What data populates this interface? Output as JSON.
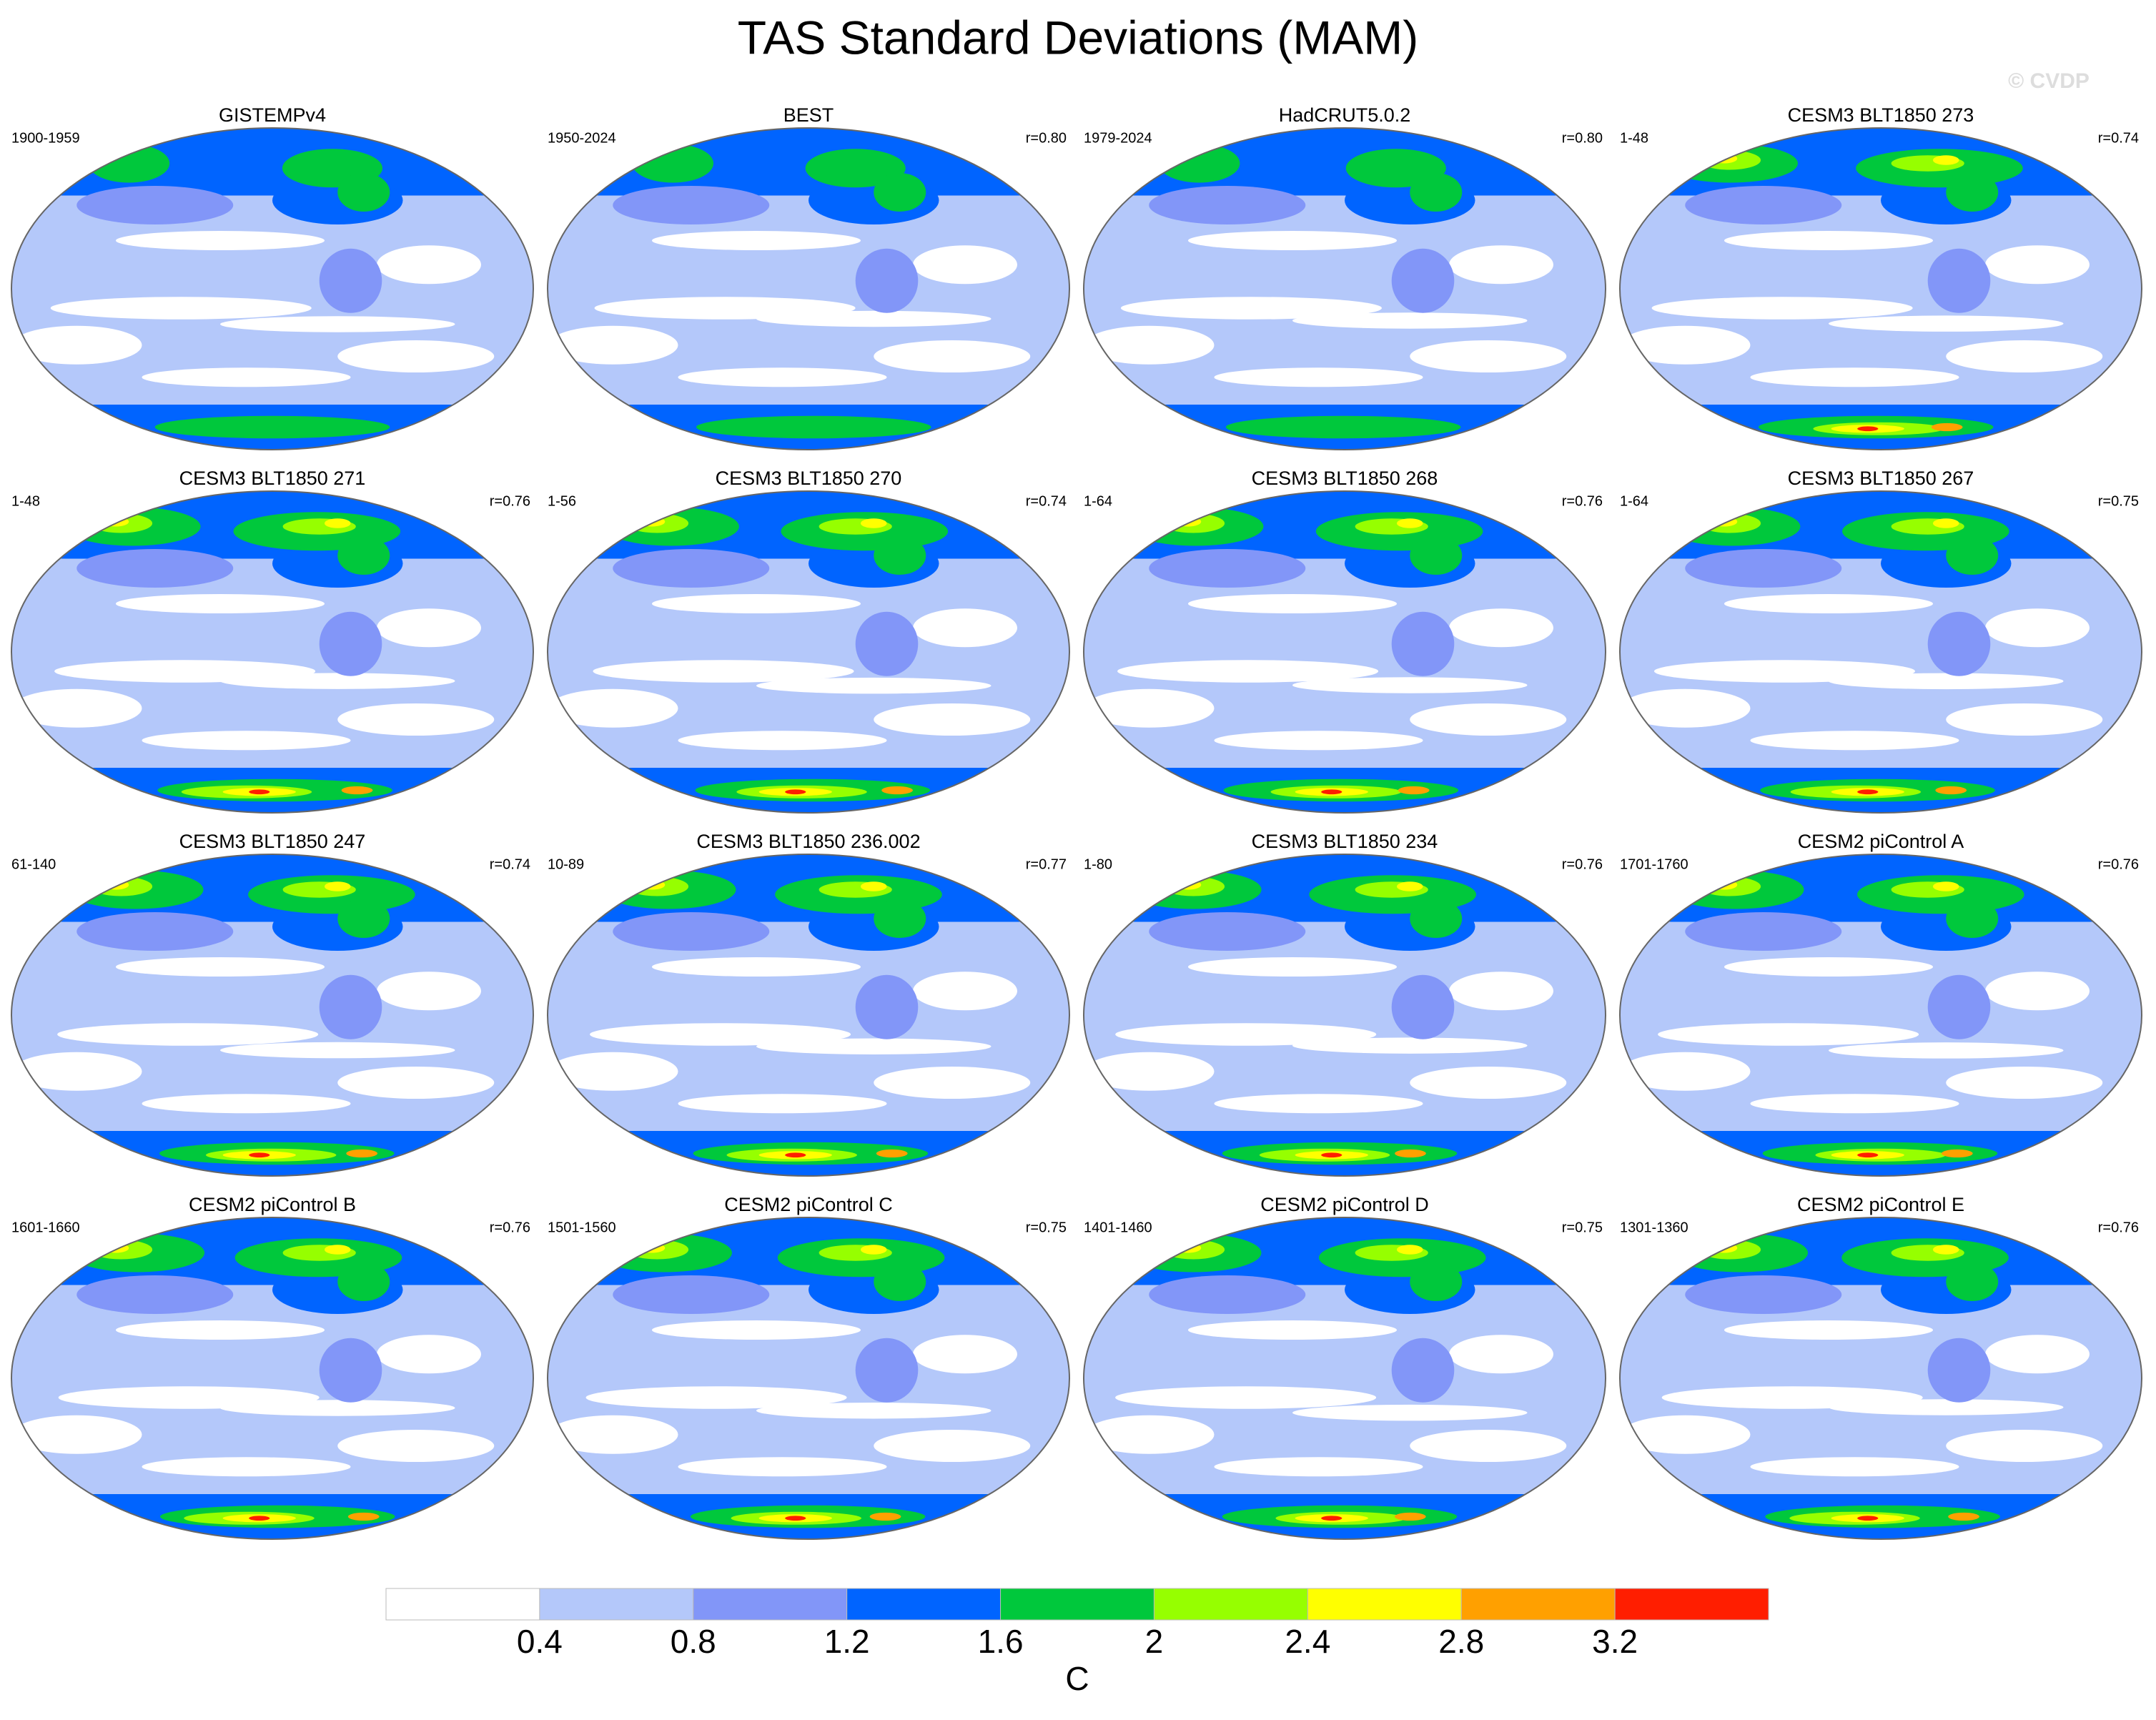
{
  "title": "TAS Standard Deviations (MAM)",
  "watermark": "© CVDP",
  "panels": [
    {
      "title": "GISTEMPv4",
      "period": "1900-1959"
    },
    {
      "title": "BEST",
      "period": "1950-2024",
      "r": "r=0.80"
    },
    {
      "title": "HadCRUT5.0.2",
      "period": "1979-2024",
      "r": "r=0.80"
    },
    {
      "title": "CESM3 BLT1850 273",
      "period": "1-48",
      "r": "r=0.74"
    },
    {
      "title": "CESM3 BLT1850 271",
      "period": "1-48",
      "r": "r=0.76"
    },
    {
      "title": "CESM3 BLT1850 270",
      "period": "1-56",
      "r": "r=0.74"
    },
    {
      "title": "CESM3 BLT1850 268",
      "period": "1-64",
      "r": "r=0.76"
    },
    {
      "title": "CESM3 BLT1850 267",
      "period": "1-64",
      "r": "r=0.75"
    },
    {
      "title": "CESM3 BLT1850 247",
      "period": "61-140",
      "r": "r=0.74"
    },
    {
      "title": "CESM3 BLT1850 236.002",
      "period": "10-89",
      "r": "r=0.77"
    },
    {
      "title": "CESM3 BLT1850 234",
      "period": "1-80",
      "r": "r=0.76"
    },
    {
      "title": "CESM2 piControl A",
      "period": "1701-1760",
      "r": "r=0.76"
    },
    {
      "title": "CESM2 piControl B",
      "period": "1601-1660",
      "r": "r=0.76"
    },
    {
      "title": "CESM2 piControl C",
      "period": "1501-1560",
      "r": "r=0.75"
    },
    {
      "title": "CESM2 piControl D",
      "period": "1401-1460",
      "r": "r=0.75"
    },
    {
      "title": "CESM2 piControl E",
      "period": "1301-1360",
      "r": "r=0.76"
    }
  ],
  "colorbar": {
    "ticks": [
      0.4,
      0.8,
      1.2,
      1.6,
      2,
      2.4,
      2.8,
      3.2
    ],
    "colors": [
      "#ffffff",
      "#b4c8fa",
      "#8296f8",
      "#0064ff",
      "#00c83c",
      "#96ff00",
      "#ffff00",
      "#ffa000",
      "#ff1e00"
    ],
    "label": "C"
  }
}
